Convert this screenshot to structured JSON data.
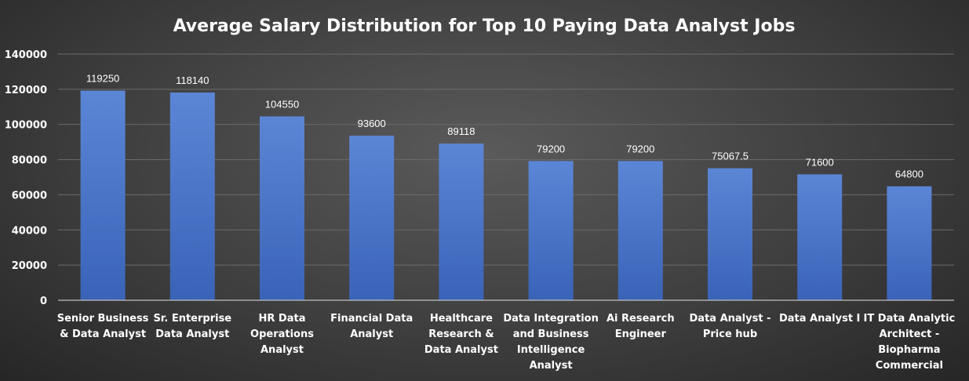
{
  "chart_data": {
    "type": "bar",
    "title": "Average Salary Distribution for Top 10 Paying Data Analyst Jobs",
    "xlabel": "",
    "ylabel": "",
    "ylim": [
      0,
      140000
    ],
    "yticks": [
      "0",
      "20000",
      "40000",
      "60000",
      "80000",
      "100000",
      "120000",
      "140000"
    ],
    "grid": true,
    "legend": "none",
    "bar_color": "#4472c4",
    "categories": [
      [
        "Senior Business",
        "& Data Analyst"
      ],
      [
        "Sr. Enterprise",
        "Data Analyst"
      ],
      [
        "HR Data",
        "Operations",
        "Analyst"
      ],
      [
        "Financial Data",
        "Analyst"
      ],
      [
        "Healthcare",
        "Research &",
        "Data Analyst"
      ],
      [
        "Data Integration",
        "and Business",
        "Intelligence",
        "Analyst"
      ],
      [
        "Ai Research",
        "Engineer"
      ],
      [
        "Data Analyst -",
        "Price hub"
      ],
      [
        "Data Analyst I"
      ],
      [
        "IT Data Analytic",
        "Architect -",
        "Biopharma",
        "Commercial"
      ]
    ],
    "values": [
      119250,
      118140,
      104550,
      93600,
      89118,
      79200,
      79200,
      75067.5,
      71600,
      64800
    ],
    "value_labels": [
      "119250",
      "118140",
      "104550",
      "93600",
      "89118",
      "79200",
      "79200",
      "75067.5",
      "71600",
      "64800"
    ]
  }
}
